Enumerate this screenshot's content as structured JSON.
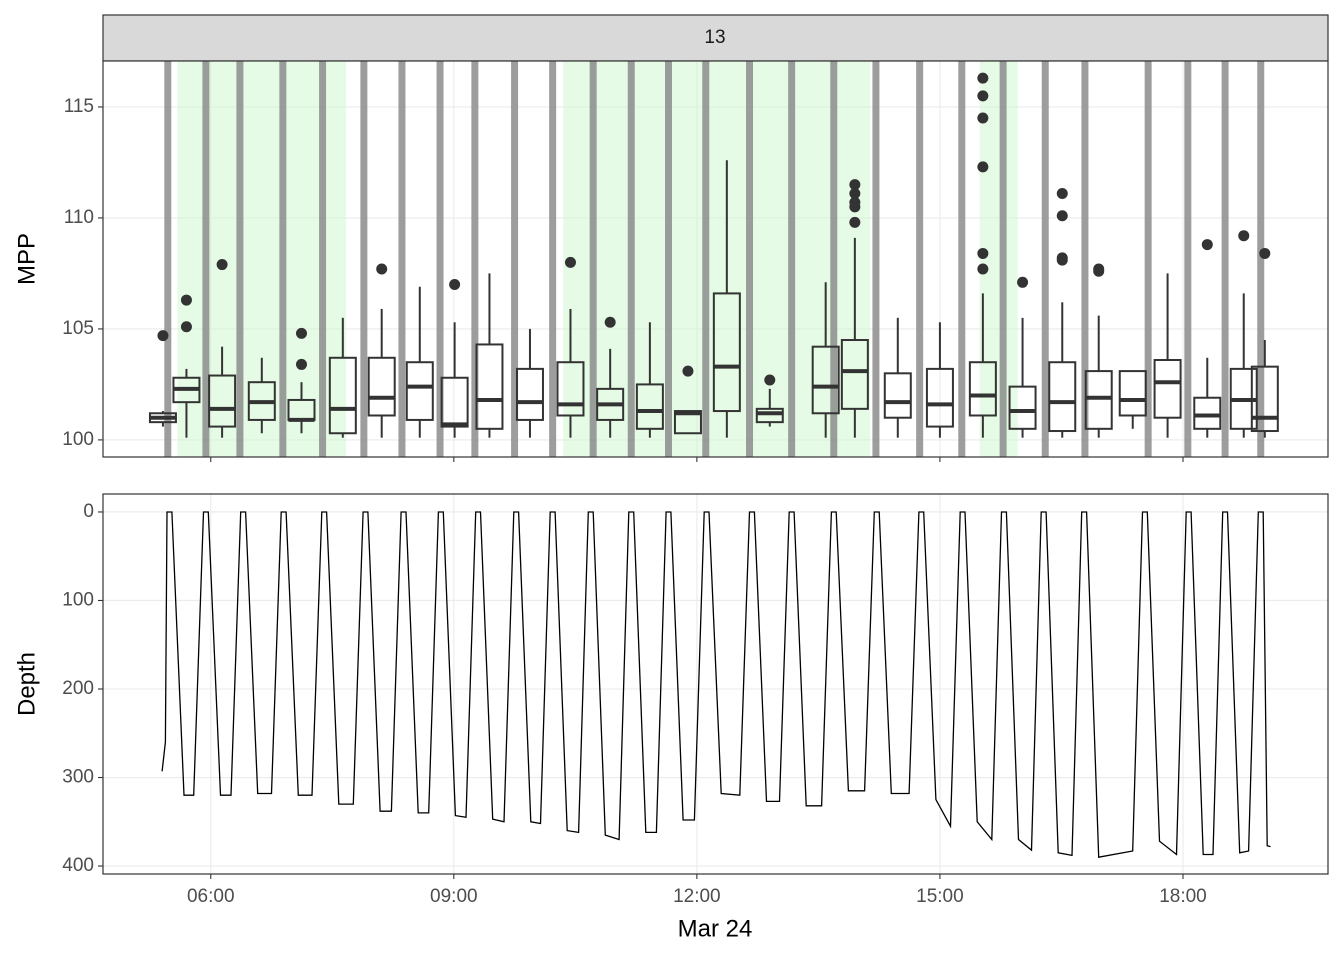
{
  "chart_data": [
    {
      "type": "box",
      "strip": "13",
      "y_label": "MPP",
      "xlim": [
        4.67,
        19.79
      ],
      "xticks": [
        6,
        9,
        12,
        15,
        18
      ],
      "ylim": [
        99.23,
        117.07
      ],
      "yticks": [
        100,
        105,
        110,
        115
      ],
      "grid": true,
      "box_color": "#333333",
      "shade_color": "#ccf7cc",
      "bar_color": "#8c8c8c",
      "shaded_intervals": [
        [
          5.59,
          7.67
        ],
        [
          10.35,
          14.14
        ],
        [
          15.49,
          15.96
        ]
      ],
      "surface_times": [
        5.47,
        5.94,
        6.36,
        6.89,
        7.38,
        7.89,
        8.36,
        8.83,
        9.26,
        9.75,
        10.22,
        10.72,
        11.19,
        11.65,
        12.11,
        12.65,
        13.17,
        13.69,
        14.21,
        14.75,
        15.27,
        15.78,
        16.3,
        16.79,
        17.57,
        18.06,
        18.52,
        18.96
      ],
      "boxes": [
        {
          "x": 5.41,
          "low": 100.6,
          "q1": 100.8,
          "median": 101,
          "q3": 101.2,
          "high": 101.3,
          "outliers": [
            104.7
          ]
        },
        {
          "x": 5.7,
          "low": 100.1,
          "q1": 101.7,
          "median": 102.3,
          "q3": 102.8,
          "high": 103.2,
          "outliers": [
            106.3,
            105.1
          ]
        },
        {
          "x": 6.14,
          "low": 100.1,
          "q1": 100.6,
          "median": 101.4,
          "q3": 102.9,
          "high": 104.2,
          "outliers": [
            107.9
          ]
        },
        {
          "x": 6.63,
          "low": 100.3,
          "q1": 100.9,
          "median": 101.7,
          "q3": 102.6,
          "high": 103.7,
          "outliers": []
        },
        {
          "x": 7.12,
          "low": 100.3,
          "q1": 100.9,
          "median": 100.9,
          "q3": 101.8,
          "high": 102.6,
          "outliers": [
            104.8,
            103.4
          ]
        },
        {
          "x": 7.63,
          "low": 100.1,
          "q1": 100.3,
          "median": 101.4,
          "q3": 103.7,
          "high": 105.5,
          "outliers": []
        },
        {
          "x": 8.11,
          "low": 100.1,
          "q1": 101.1,
          "median": 101.9,
          "q3": 103.7,
          "high": 105.9,
          "outliers": [
            107.7
          ]
        },
        {
          "x": 8.58,
          "low": 100.1,
          "q1": 100.9,
          "median": 102.4,
          "q3": 103.5,
          "high": 106.9,
          "outliers": []
        },
        {
          "x": 9.01,
          "low": 100.1,
          "q1": 100.6,
          "median": 100.7,
          "q3": 102.8,
          "high": 105.3,
          "outliers": [
            107
          ]
        },
        {
          "x": 9.44,
          "low": 100.1,
          "q1": 100.5,
          "median": 101.8,
          "q3": 104.3,
          "high": 107.5,
          "outliers": []
        },
        {
          "x": 9.94,
          "low": 100.1,
          "q1": 100.9,
          "median": 101.7,
          "q3": 103.2,
          "high": 105,
          "outliers": []
        },
        {
          "x": 10.44,
          "low": 100.1,
          "q1": 101.1,
          "median": 101.6,
          "q3": 103.5,
          "high": 105.9,
          "outliers": [
            108
          ]
        },
        {
          "x": 10.93,
          "low": 100.1,
          "q1": 100.9,
          "median": 101.6,
          "q3": 102.3,
          "high": 104.1,
          "outliers": [
            105.3
          ]
        },
        {
          "x": 11.42,
          "low": 100.1,
          "q1": 100.5,
          "median": 101.3,
          "q3": 102.5,
          "high": 105.3,
          "outliers": []
        },
        {
          "x": 11.89,
          "low": 100.3,
          "q1": 100.3,
          "median": 101.2,
          "q3": 101.3,
          "high": 101.3,
          "outliers": [
            103.1
          ]
        },
        {
          "x": 12.37,
          "low": 100.1,
          "q1": 101.3,
          "median": 103.3,
          "q3": 106.6,
          "high": 112.6,
          "outliers": []
        },
        {
          "x": 12.9,
          "low": 100.6,
          "q1": 100.8,
          "median": 101.2,
          "q3": 101.4,
          "high": 102.3,
          "outliers": [
            102.7
          ]
        },
        {
          "x": 13.59,
          "low": 100.1,
          "q1": 101.2,
          "median": 102.4,
          "q3": 104.2,
          "high": 107.1,
          "outliers": []
        },
        {
          "x": 13.95,
          "low": 100.1,
          "q1": 101.4,
          "median": 103.1,
          "q3": 104.5,
          "high": 109.1,
          "outliers": [
            111.5,
            111.1,
            110.7,
            110.5,
            109.8
          ]
        },
        {
          "x": 14.48,
          "low": 100.1,
          "q1": 101,
          "median": 101.7,
          "q3": 103,
          "high": 105.5,
          "outliers": []
        },
        {
          "x": 15,
          "low": 100.1,
          "q1": 100.6,
          "median": 101.6,
          "q3": 103.2,
          "high": 105.3,
          "outliers": []
        },
        {
          "x": 15.53,
          "low": 100.1,
          "q1": 101.1,
          "median": 102,
          "q3": 103.5,
          "high": 106.6,
          "outliers": [
            116.3,
            115.5,
            114.5,
            112.3,
            108.4,
            107.7
          ]
        },
        {
          "x": 16.02,
          "low": 100.1,
          "q1": 100.5,
          "median": 101.3,
          "q3": 102.4,
          "high": 105.5,
          "outliers": [
            107.1
          ]
        },
        {
          "x": 16.51,
          "low": 100.1,
          "q1": 100.4,
          "median": 101.7,
          "q3": 103.5,
          "high": 106.2,
          "outliers": [
            111.1,
            110.1,
            108.2,
            108.1
          ]
        },
        {
          "x": 16.96,
          "low": 100.1,
          "q1": 100.5,
          "median": 101.9,
          "q3": 103.1,
          "high": 105.6,
          "outliers": [
            107.7,
            107.6
          ]
        },
        {
          "x": 17.38,
          "low": 100.5,
          "q1": 101.1,
          "median": 101.8,
          "q3": 103.1,
          "high": 103.1,
          "outliers": []
        },
        {
          "x": 17.81,
          "low": 100.1,
          "q1": 101,
          "median": 102.6,
          "q3": 103.6,
          "high": 107.5,
          "outliers": []
        },
        {
          "x": 18.3,
          "low": 100.1,
          "q1": 100.5,
          "median": 101.1,
          "q3": 101.9,
          "high": 103.7,
          "outliers": [
            108.8
          ]
        },
        {
          "x": 18.75,
          "low": 100.1,
          "q1": 100.5,
          "median": 101.8,
          "q3": 103.2,
          "high": 106.6,
          "outliers": [
            109.2
          ]
        },
        {
          "x": 19.01,
          "low": 100.1,
          "q1": 100.4,
          "median": 101,
          "q3": 103.3,
          "high": 104.5,
          "outliers": [
            108.4
          ]
        }
      ]
    },
    {
      "type": "line",
      "y_label": "Depth",
      "x_label": "Mar 24",
      "color": "#000000",
      "xlim": [
        4.67,
        19.79
      ],
      "xticks": [
        {
          "value": 6,
          "label": "06:00"
        },
        {
          "value": 9,
          "label": "09:00"
        },
        {
          "value": 12,
          "label": "12:00"
        },
        {
          "value": 15,
          "label": "15:00"
        },
        {
          "value": 18,
          "label": "18:00"
        }
      ],
      "ylim": [
        -20.3,
        409
      ],
      "y_reverse": true,
      "yticks": [
        0,
        100,
        200,
        300,
        400
      ],
      "grid": true,
      "x": [
        5.4,
        5.44,
        5.46,
        5.52,
        5.67,
        5.79,
        5.91,
        5.97,
        6.12,
        6.25,
        6.37,
        6.43,
        6.58,
        6.75,
        6.87,
        6.93,
        7.08,
        7.25,
        7.37,
        7.43,
        7.58,
        7.76,
        7.88,
        7.94,
        8.09,
        8.23,
        8.35,
        8.41,
        8.56,
        8.69,
        8.81,
        8.87,
        9.02,
        9.15,
        9.27,
        9.33,
        9.48,
        9.62,
        9.74,
        9.8,
        9.95,
        10.07,
        10.19,
        10.25,
        10.4,
        10.54,
        10.66,
        10.72,
        10.87,
        11.04,
        11.16,
        11.22,
        11.37,
        11.5,
        11.62,
        11.68,
        11.83,
        11.97,
        12.09,
        12.15,
        12.3,
        12.53,
        12.65,
        12.71,
        12.86,
        13.02,
        13.14,
        13.2,
        13.35,
        13.54,
        13.66,
        13.72,
        13.87,
        14.07,
        14.19,
        14.25,
        14.4,
        14.62,
        14.74,
        14.8,
        14.95,
        15.13,
        15.25,
        15.31,
        15.46,
        15.64,
        15.76,
        15.82,
        15.97,
        16.13,
        16.25,
        16.31,
        16.46,
        16.63,
        16.75,
        16.81,
        16.96,
        17.38,
        17.5,
        17.56,
        17.71,
        17.92,
        18.04,
        18.1,
        18.25,
        18.37,
        18.49,
        18.55,
        18.7,
        18.81,
        18.93,
        18.99,
        19.04,
        19.08
      ],
      "values": [
        293,
        260,
        0,
        0,
        320,
        320,
        0,
        0,
        320,
        320,
        0,
        0,
        318,
        318,
        0,
        0,
        320,
        320,
        0,
        0,
        330,
        330,
        0,
        0,
        338,
        338,
        0,
        0,
        340,
        340,
        0,
        0,
        343,
        345,
        0,
        0,
        347,
        350,
        0,
        0,
        350,
        352,
        0,
        0,
        360,
        362,
        0,
        0,
        365,
        370,
        0,
        0,
        362,
        362,
        0,
        0,
        348,
        348,
        0,
        0,
        318,
        320,
        0,
        0,
        327,
        327,
        0,
        0,
        332,
        332,
        0,
        0,
        315,
        315,
        0,
        0,
        318,
        318,
        0,
        0,
        325,
        355,
        0,
        0,
        350,
        370,
        0,
        0,
        370,
        382,
        0,
        0,
        385,
        388,
        0,
        0,
        390,
        383,
        0,
        0,
        372,
        387,
        0,
        0,
        387,
        387,
        0,
        0,
        385,
        383,
        0,
        0,
        377,
        378
      ]
    }
  ]
}
